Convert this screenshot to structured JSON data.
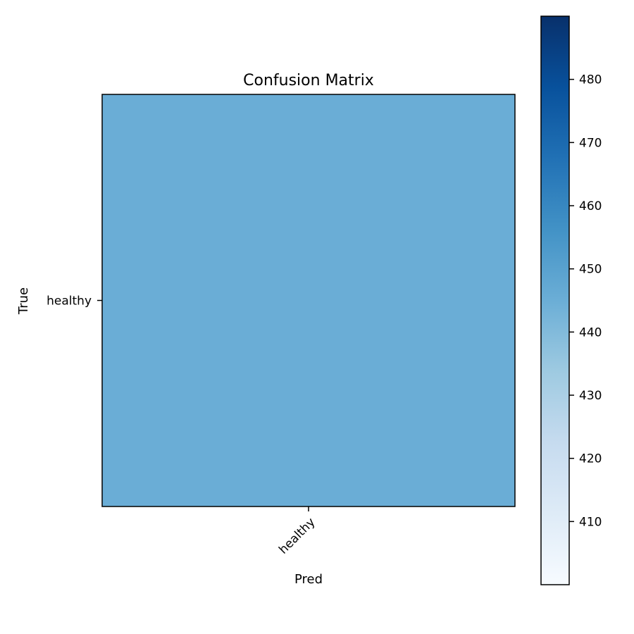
{
  "chart_data": {
    "type": "heatmap",
    "title": "Confusion Matrix",
    "xlabel": "Pred",
    "ylabel": "True",
    "x_categories": [
      "healthy"
    ],
    "y_categories": [
      "healthy"
    ],
    "values": [
      [
        445
      ]
    ],
    "colorbar": {
      "range": [
        400,
        490
      ],
      "ticks": [
        410,
        420,
        430,
        440,
        450,
        460,
        470,
        480
      ],
      "colormap": "Blues",
      "colormap_stops": [
        "#f7fbff",
        "#deebf7",
        "#c6dbef",
        "#9ecae1",
        "#6baed6",
        "#4292c6",
        "#2171b5",
        "#08519c",
        "#08306b"
      ]
    },
    "cell_color": "#6aadd6",
    "grid": false
  }
}
